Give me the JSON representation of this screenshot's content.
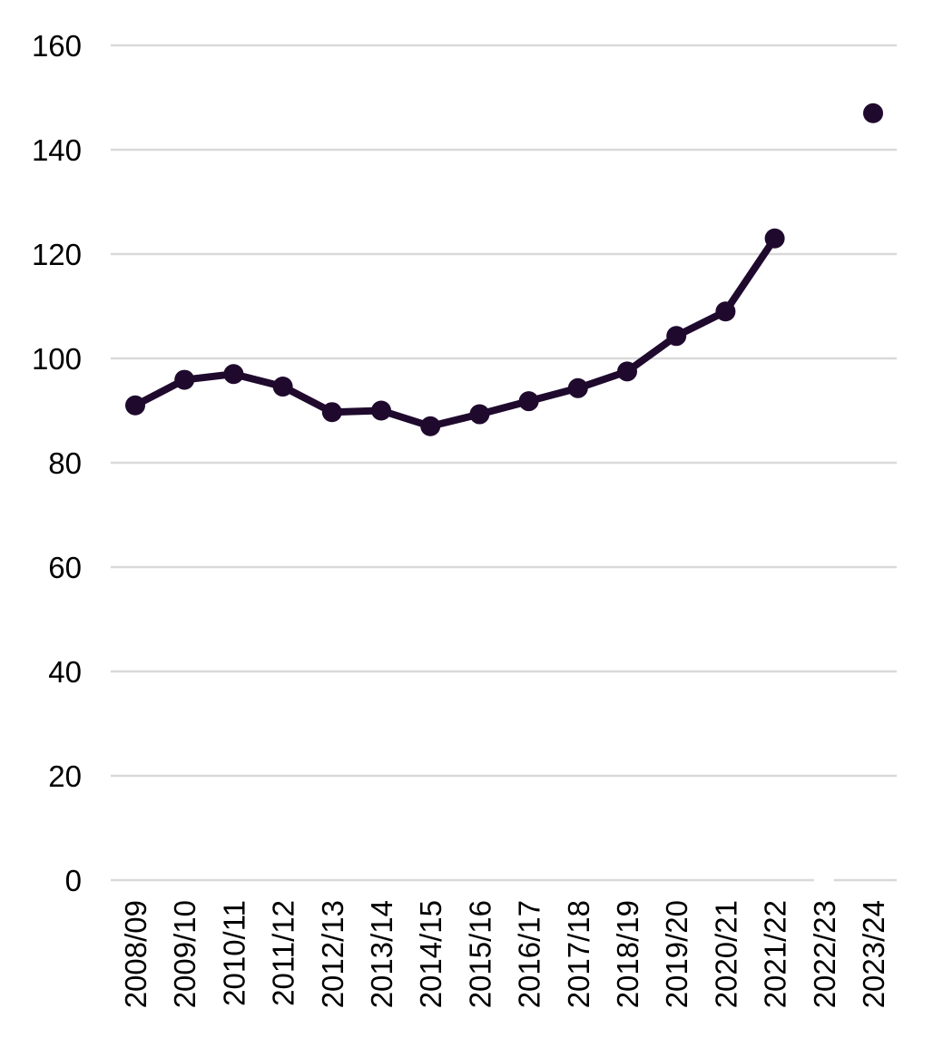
{
  "chart_data": {
    "type": "line",
    "title": "",
    "xlabel": "",
    "ylabel": "",
    "categories": [
      "2008/09",
      "2009/10",
      "2010/11",
      "2011/12",
      "2012/13",
      "2013/14",
      "2014/15",
      "2015/16",
      "2016/17",
      "2017/18",
      "2018/19",
      "2019/20",
      "2020/21",
      "2021/22",
      "2022/23",
      "2023/24"
    ],
    "series": [
      {
        "values": [
          91,
          95.9,
          97,
          94.6,
          89.7,
          90,
          87,
          89.3,
          91.8,
          94.3,
          97.5,
          104.3,
          109,
          123,
          null,
          147
        ]
      }
    ],
    "ylim": [
      0,
      160
    ],
    "yticks": [
      "0",
      "20",
      "40",
      "60",
      "80",
      "100",
      "120",
      "140",
      "160"
    ],
    "grid": true,
    "legend": "none",
    "colors": {
      "series": "#1f0a2e",
      "grid": "#d9d9d9"
    }
  }
}
